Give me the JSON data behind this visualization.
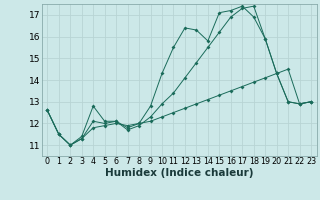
{
  "background_color": "#cce8e8",
  "grid_color": "#b8d4d4",
  "line_color": "#1a6b5a",
  "xlabel": "Humidex (Indice chaleur)",
  "xlabel_fontsize": 7.5,
  "ytick_fontsize": 6.5,
  "xtick_fontsize": 5.8,
  "xlim": [
    -0.5,
    23.5
  ],
  "ylim": [
    10.5,
    17.5
  ],
  "yticks": [
    11,
    12,
    13,
    14,
    15,
    16,
    17
  ],
  "xticks": [
    0,
    1,
    2,
    3,
    4,
    5,
    6,
    7,
    8,
    9,
    10,
    11,
    12,
    13,
    14,
    15,
    16,
    17,
    18,
    19,
    20,
    21,
    22,
    23
  ],
  "series": [
    {
      "x": [
        0,
        1,
        2,
        3,
        4,
        5,
        6,
        7,
        8,
        9,
        10,
        11,
        12,
        13,
        14,
        15,
        16,
        17,
        18,
        19,
        20,
        21,
        22,
        23
      ],
      "y": [
        12.6,
        11.5,
        11.0,
        11.4,
        12.8,
        12.1,
        12.1,
        11.8,
        12.0,
        12.8,
        14.3,
        15.5,
        16.4,
        16.3,
        15.8,
        17.1,
        17.2,
        17.4,
        16.9,
        15.9,
        14.3,
        13.0,
        12.9,
        13.0
      ]
    },
    {
      "x": [
        0,
        1,
        2,
        3,
        4,
        5,
        6,
        7,
        8,
        9,
        10,
        11,
        12,
        13,
        14,
        15,
        16,
        17,
        18,
        19,
        20,
        21,
        22,
        23
      ],
      "y": [
        12.6,
        11.5,
        11.0,
        11.3,
        11.8,
        11.9,
        12.0,
        11.9,
        12.0,
        12.1,
        12.3,
        12.5,
        12.7,
        12.9,
        13.1,
        13.3,
        13.5,
        13.7,
        13.9,
        14.1,
        14.3,
        14.5,
        12.9,
        13.0
      ]
    },
    {
      "x": [
        0,
        1,
        2,
        3,
        4,
        5,
        6,
        7,
        8,
        9,
        10,
        11,
        12,
        13,
        14,
        15,
        16,
        17,
        18,
        19,
        20,
        21,
        22,
        23
      ],
      "y": [
        12.6,
        11.5,
        11.0,
        11.3,
        12.1,
        12.0,
        12.1,
        11.7,
        11.9,
        12.3,
        12.9,
        13.4,
        14.1,
        14.8,
        15.5,
        16.2,
        16.9,
        17.3,
        17.4,
        15.9,
        14.3,
        13.0,
        12.9,
        13.0
      ]
    }
  ]
}
